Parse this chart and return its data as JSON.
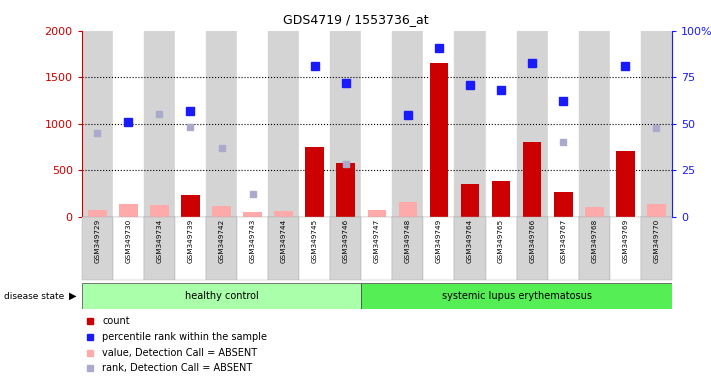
{
  "title": "GDS4719 / 1553736_at",
  "samples": [
    "GSM349729",
    "GSM349730",
    "GSM349734",
    "GSM349739",
    "GSM349742",
    "GSM349743",
    "GSM349744",
    "GSM349745",
    "GSM349746",
    "GSM349747",
    "GSM349748",
    "GSM349749",
    "GSM349764",
    "GSM349765",
    "GSM349766",
    "GSM349767",
    "GSM349768",
    "GSM349769",
    "GSM349770"
  ],
  "healthy_count": 9,
  "sle_count": 10,
  "groups": [
    "healthy control",
    "systemic lupus erythematosus"
  ],
  "count_values": [
    null,
    null,
    null,
    240,
    null,
    null,
    null,
    750,
    580,
    null,
    null,
    1650,
    350,
    390,
    810,
    265,
    null,
    710,
    null
  ],
  "count_absent": [
    80,
    140,
    130,
    null,
    120,
    50,
    60,
    null,
    50,
    80,
    160,
    null,
    null,
    null,
    null,
    null,
    110,
    null,
    140
  ],
  "percentile_values": [
    null,
    1020,
    null,
    1140,
    null,
    null,
    null,
    1620,
    1440,
    null,
    1090,
    1810,
    1420,
    1360,
    1650,
    1250,
    null,
    1620,
    null
  ],
  "rank_absent": [
    900,
    null,
    1110,
    970,
    740,
    250,
    null,
    null,
    570,
    null,
    null,
    null,
    null,
    null,
    null,
    810,
    null,
    null,
    960
  ],
  "ylim_left": [
    0,
    2000
  ],
  "ylim_right": [
    0,
    100
  ],
  "yticks_left": [
    0,
    500,
    1000,
    1500,
    2000
  ],
  "yticks_right": [
    0,
    25,
    50,
    75,
    100
  ],
  "bar_color_red": "#cc0000",
  "bar_color_pink": "#ffaaaa",
  "dot_color_blue": "#1a1aff",
  "dot_color_lightblue": "#aaaacc",
  "hc_color": "#aaffaa",
  "sle_color": "#55ee55",
  "col_bg_even": "#d4d4d4",
  "col_bg_odd": "#ffffff",
  "legend_items": [
    {
      "label": "count",
      "color": "#cc0000"
    },
    {
      "label": "percentile rank within the sample",
      "color": "#1a1aff"
    },
    {
      "label": "value, Detection Call = ABSENT",
      "color": "#ffaaaa"
    },
    {
      "label": "rank, Detection Call = ABSENT",
      "color": "#aaaacc"
    }
  ]
}
